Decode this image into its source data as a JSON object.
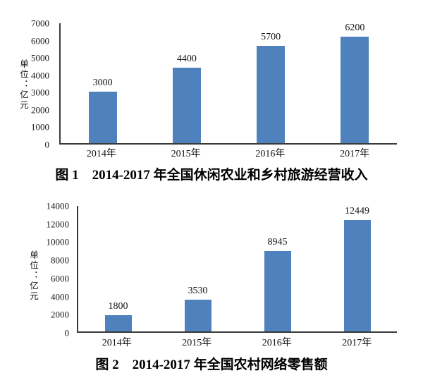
{
  "colors": {
    "bar": "#4f81bd",
    "axis": "#3a3a3a",
    "text": "#1a1a1a"
  },
  "chart_data": [
    {
      "type": "bar",
      "title": "图 1　2014-2017 年全国休闲农业和乡村旅游经营收入",
      "ylabel": "单位：亿元",
      "xlabel": "",
      "categories": [
        "2014年",
        "2015年",
        "2016年",
        "2017年"
      ],
      "values": [
        3000,
        4400,
        5700,
        6200
      ],
      "data_labels": [
        "3000",
        "4400",
        "5700",
        "6200"
      ],
      "ylim": [
        0,
        7000
      ],
      "yticks": [
        0,
        1000,
        2000,
        3000,
        4000,
        5000,
        6000,
        7000
      ],
      "grid": false,
      "legend": false,
      "bar_color": "#4f81bd"
    },
    {
      "type": "bar",
      "title": "图 2　2014-2017 年全国农村网络零售额",
      "ylabel": "单位：亿元",
      "xlabel": "",
      "categories": [
        "2014年",
        "2015年",
        "2016年",
        "2017年"
      ],
      "values": [
        1800,
        3530,
        8945,
        12449
      ],
      "data_labels": [
        "1800",
        "3530",
        "8945",
        "12449"
      ],
      "ylim": [
        0,
        14000
      ],
      "yticks": [
        0,
        2000,
        4000,
        6000,
        8000,
        10000,
        12000,
        14000
      ],
      "grid": false,
      "legend": false,
      "bar_color": "#4f81bd"
    }
  ]
}
